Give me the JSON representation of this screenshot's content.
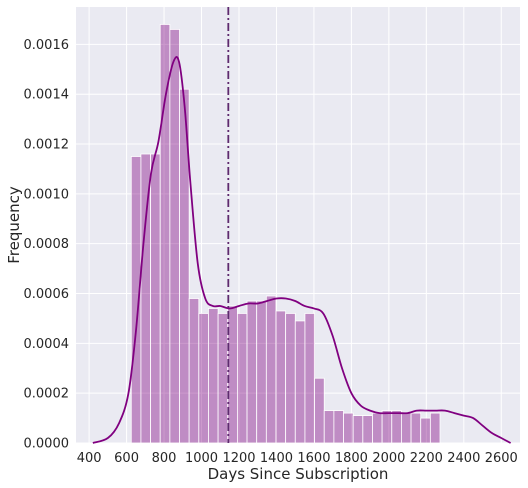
{
  "chart_data": {
    "type": "bar",
    "style": "histogram-with-kde",
    "title": "",
    "xlabel": "Days Since Subscription",
    "ylabel": "Frequency",
    "xlim": [
      330,
      2700
    ],
    "ylim": [
      0,
      0.00175
    ],
    "xticks": [
      400,
      600,
      800,
      1000,
      1200,
      1400,
      1600,
      1800,
      2000,
      2200,
      2400,
      2600
    ],
    "xtick_labels": [
      "400",
      "600",
      "800",
      "1000",
      "1200",
      "1400",
      "1600",
      "1800",
      "2000",
      "2200",
      "2400",
      "2600"
    ],
    "yticks": [
      0,
      0.0002,
      0.0004,
      0.0006,
      0.0008,
      0.001,
      0.0012,
      0.0014,
      0.0016
    ],
    "ytick_labels": [
      "0.0000",
      "0.0002",
      "0.0004",
      "0.0006",
      "0.0008",
      "0.0010",
      "0.0012",
      "0.0014",
      "0.0016"
    ],
    "grid": true,
    "colors": {
      "bars": "#800080",
      "bar_opacity": 0.4,
      "kde": "#800080",
      "vline": "#5e2a6e",
      "background": "#eaeaf2",
      "grid": "#ffffff"
    },
    "bins": {
      "start": 625,
      "width": 51.5,
      "values": [
        0.00115,
        0.00116,
        0.00116,
        0.00168,
        0.00166,
        0.00142,
        0.00058,
        0.00052,
        0.00054,
        0.00052,
        0.00055,
        0.00052,
        0.00057,
        0.00057,
        0.00059,
        0.00053,
        0.00052,
        0.00049,
        0.00052,
        0.00026,
        0.00013,
        0.00013,
        0.00012,
        0.00011,
        0.00011,
        0.00012,
        0.00013,
        0.00013,
        0.00012,
        0.00012,
        0.0001,
        0.00012
      ]
    },
    "kde": {
      "x": [
        420,
        500,
        560,
        610,
        650,
        690,
        730,
        770,
        810,
        850,
        880,
        910,
        940,
        980,
        1020,
        1060,
        1100,
        1150,
        1200,
        1250,
        1300,
        1350,
        1400,
        1450,
        1500,
        1550,
        1600,
        1650,
        1700,
        1750,
        1800,
        1850,
        1900,
        1950,
        2000,
        2050,
        2100,
        2150,
        2200,
        2250,
        2300,
        2350,
        2400,
        2450,
        2500,
        2550,
        2600,
        2650
      ],
      "y": [
        0.0,
        2e-05,
        8e-05,
        0.0002,
        0.00045,
        0.0008,
        0.00108,
        0.00121,
        0.0014,
        0.00153,
        0.00153,
        0.00135,
        0.00105,
        0.00072,
        0.00058,
        0.00055,
        0.00055,
        0.00054,
        0.00055,
        0.00056,
        0.00056,
        0.00057,
        0.00058,
        0.00058,
        0.00057,
        0.00055,
        0.00054,
        0.00052,
        0.00043,
        0.0003,
        0.0002,
        0.00015,
        0.00013,
        0.00012,
        0.00012,
        0.00012,
        0.00012,
        0.00013,
        0.00013,
        0.00013,
        0.00013,
        0.00012,
        0.00011,
        0.0001,
        7e-05,
        4e-05,
        2e-05,
        0.0
      ]
    },
    "vline_x": 1143
  }
}
